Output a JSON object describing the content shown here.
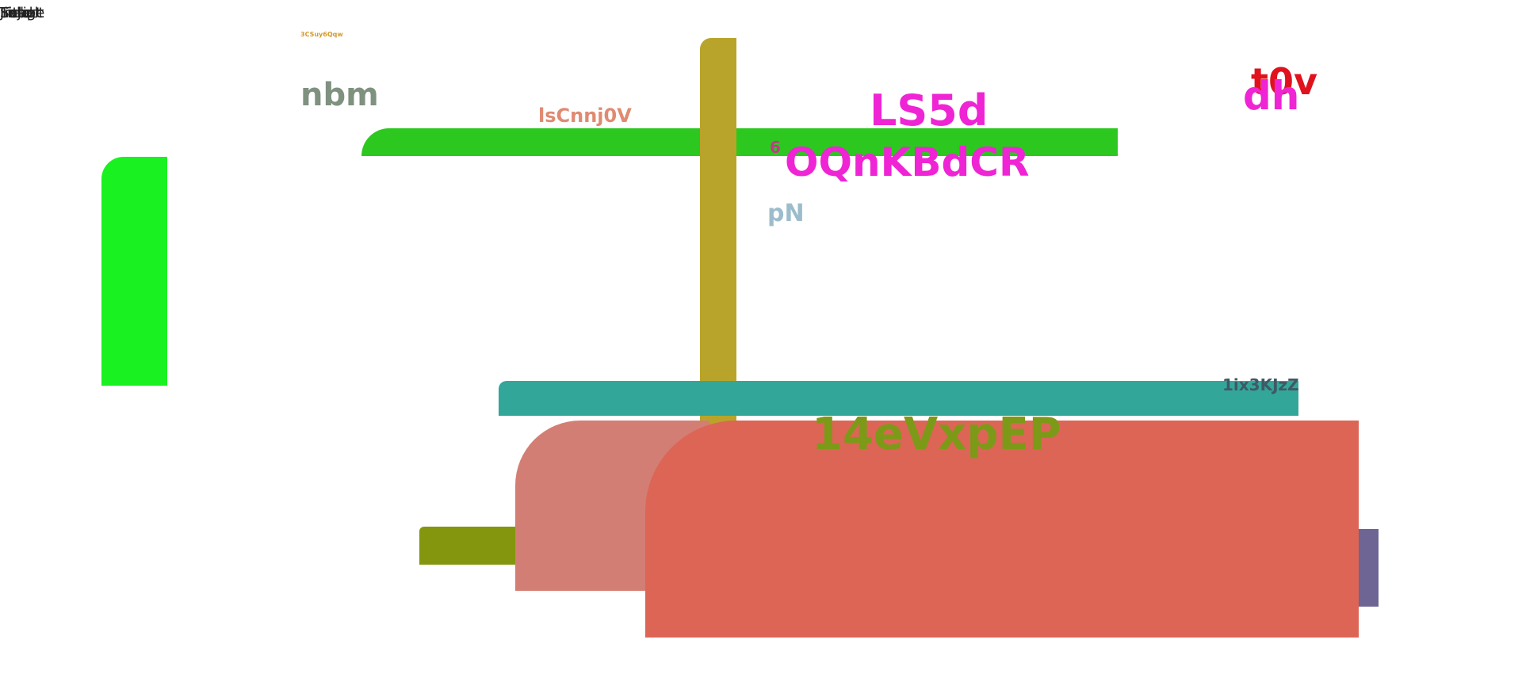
{
  "corner_fragment": {
    "words": [
      "Jinja",
      "Script",
      "Image",
      "Label",
      "Select",
      "Title",
      "Field"
    ]
  },
  "labels": {
    "tiny": "3CSuy6Qqw",
    "nbm": "nbm",
    "isc": "lsCnnj0V",
    "ls5d": "LS5d",
    "six": "6",
    "oqn": "OQnKBdCR",
    "pn": "pN",
    "t0v": "t0v",
    "dh": "dh",
    "ix": "1ix3KJzZ",
    "e14": "14eVxpEP"
  },
  "colors": {
    "green_left": "#19f220",
    "green_bar": "#2cc81f",
    "olive_pole": "#b8a42a",
    "teal_bar": "#33a69a",
    "olive_small": "#84960e",
    "purple_side": "#6e6594",
    "salmon_a": "#d37e74",
    "salmon_b": "#dd6556",
    "tiny_text": "#d39a2a",
    "nbm_text": "#7f917f",
    "isc_text": "#e08a72",
    "magenta_text": "#ef24d4",
    "six_text": "#c13a8a",
    "pn_text": "#9dbccb",
    "red_text": "#e0121e",
    "ix_text": "#3e5a66",
    "e14_text": "#7c9a18"
  }
}
